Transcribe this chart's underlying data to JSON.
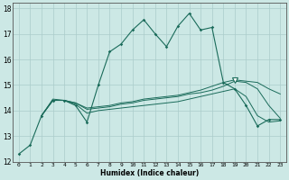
{
  "xlabel": "Humidex (Indice chaleur)",
  "background_color": "#cce8e5",
  "grid_color": "#aaccca",
  "line_color": "#1a6b5a",
  "xlim": [
    -0.5,
    23.5
  ],
  "ylim": [
    12,
    18.2
  ],
  "yticks": [
    12,
    13,
    14,
    15,
    16,
    17,
    18
  ],
  "xticks": [
    0,
    1,
    2,
    3,
    4,
    5,
    6,
    7,
    8,
    9,
    10,
    11,
    12,
    13,
    14,
    15,
    16,
    17,
    18,
    19,
    20,
    21,
    22,
    23
  ],
  "series1_x": [
    0,
    1,
    2,
    3,
    4,
    5,
    6,
    7,
    8,
    9,
    10,
    11,
    12,
    13,
    14,
    15,
    16,
    17,
    18,
    19,
    20,
    21,
    22,
    23
  ],
  "series1_y": [
    12.3,
    12.65,
    13.8,
    14.4,
    14.4,
    14.2,
    13.55,
    15.0,
    16.3,
    16.6,
    17.15,
    17.55,
    17.0,
    16.5,
    17.3,
    17.8,
    17.15,
    17.25,
    15.1,
    14.85,
    14.2,
    13.4,
    13.65,
    13.65
  ],
  "series2_x": [
    2,
    3,
    4,
    5,
    6,
    7,
    8,
    9,
    10,
    11,
    12,
    13,
    14,
    15,
    16,
    17,
    18,
    19,
    20,
    21,
    22,
    23
  ],
  "series2_y": [
    13.8,
    14.4,
    14.4,
    14.25,
    13.9,
    14.0,
    14.05,
    14.1,
    14.15,
    14.2,
    14.25,
    14.3,
    14.35,
    14.45,
    14.55,
    14.65,
    14.75,
    14.85,
    14.55,
    13.8,
    13.55,
    13.6
  ],
  "series3_x": [
    2,
    3,
    4,
    5,
    6,
    7,
    8,
    9,
    10,
    11,
    12,
    13,
    14,
    15,
    16,
    17,
    18,
    19,
    20,
    21,
    22,
    23
  ],
  "series3_y": [
    13.8,
    14.45,
    14.4,
    14.3,
    14.05,
    14.1,
    14.15,
    14.25,
    14.3,
    14.4,
    14.45,
    14.5,
    14.55,
    14.65,
    14.7,
    14.8,
    14.95,
    15.15,
    15.1,
    14.85,
    14.2,
    13.7
  ],
  "series4_x": [
    2,
    3,
    4,
    5,
    6,
    7,
    8,
    9,
    10,
    11,
    12,
    13,
    14,
    15,
    16,
    17,
    18,
    19,
    20,
    21,
    22,
    23
  ],
  "series4_y": [
    13.8,
    14.4,
    14.4,
    14.3,
    14.1,
    14.15,
    14.2,
    14.3,
    14.35,
    14.45,
    14.5,
    14.55,
    14.6,
    14.7,
    14.8,
    14.95,
    15.1,
    15.2,
    15.15,
    15.1,
    14.85,
    14.65
  ],
  "triangle_x": 19,
  "triangle_y": 15.2
}
